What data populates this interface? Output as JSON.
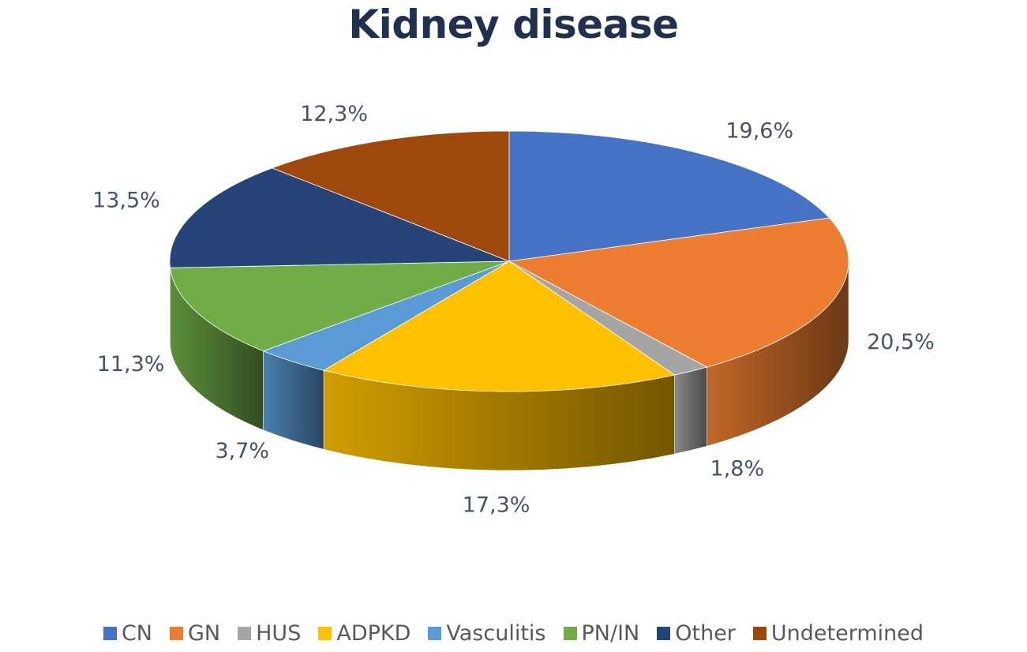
{
  "chart_data": {
    "type": "pie",
    "title": "Kidney disease",
    "legend_position": "bottom",
    "slices": [
      {
        "name": "CN",
        "value": 19.6,
        "label": "19,6%",
        "color": "#4472c4"
      },
      {
        "name": "GN",
        "value": 20.5,
        "label": "20,5%",
        "color": "#ed7d31"
      },
      {
        "name": "HUS",
        "value": 1.8,
        "label": "1,8%",
        "color": "#a5a5a5"
      },
      {
        "name": "ADPKD",
        "value": 17.3,
        "label": "17,3%",
        "color": "#ffc000"
      },
      {
        "name": "Vasculitis",
        "value": 3.7,
        "label": "3,7%",
        "color": "#5b9bd5"
      },
      {
        "name": "PN/IN",
        "value": 11.3,
        "label": "11,3%",
        "color": "#70ad47"
      },
      {
        "name": "Other",
        "value": 13.5,
        "label": "13,5%",
        "color": "#264478"
      },
      {
        "name": "Undetermined",
        "value": 12.3,
        "label": "12,3%",
        "color": "#9e480e"
      }
    ]
  }
}
